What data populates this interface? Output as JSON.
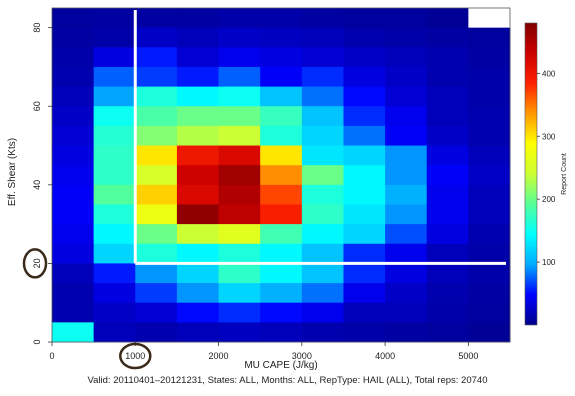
{
  "chart_data": {
    "type": "heatmap",
    "xlabel": "MU CAPE (J/kg)",
    "ylabel": "Eff. Shear (Kts)",
    "caption": "Valid: 20110401–20121231, States: ALL, Months: ALL, RepType: HAIL (ALL),   Total reps: 20740",
    "colorbar_label": "Report Count",
    "x_range": [
      0,
      5500
    ],
    "y_range": [
      0,
      85
    ],
    "x_bin_size": 500,
    "y_bin_size": 5,
    "x_ticks": [
      0,
      1000,
      2000,
      3000,
      4000,
      5000
    ],
    "y_ticks": [
      0,
      20,
      40,
      60,
      80
    ],
    "colorbar_range": [
      0,
      480
    ],
    "colorbar_ticks": [
      100,
      200,
      300,
      400
    ],
    "colormap": [
      "#00008b",
      "#0000ff",
      "#00aaff",
      "#00ffff",
      "#55ff99",
      "#ccff33",
      "#ffff00",
      "#ff9900",
      "#ff2200",
      "#cc0000",
      "#800000"
    ],
    "x_bins_start": [
      0,
      500,
      1000,
      1500,
      2000,
      2500,
      3000,
      3500,
      4000,
      4500,
      5000
    ],
    "y_bins_start": [
      80,
      75,
      70,
      65,
      60,
      55,
      50,
      45,
      40,
      35,
      30,
      25,
      20,
      15,
      10,
      5,
      0
    ],
    "values": [
      [
        8,
        10,
        10,
        10,
        12,
        12,
        10,
        8,
        8,
        5,
        null
      ],
      [
        10,
        12,
        25,
        20,
        25,
        22,
        20,
        15,
        12,
        10,
        8
      ],
      [
        12,
        35,
        55,
        30,
        40,
        35,
        30,
        25,
        20,
        15,
        10
      ],
      [
        15,
        75,
        65,
        55,
        75,
        45,
        60,
        35,
        25,
        15,
        12
      ],
      [
        20,
        95,
        160,
        140,
        150,
        110,
        80,
        50,
        30,
        20,
        12
      ],
      [
        25,
        150,
        185,
        200,
        200,
        175,
        110,
        60,
        40,
        20,
        15
      ],
      [
        30,
        165,
        210,
        230,
        240,
        160,
        120,
        80,
        45,
        25,
        15
      ],
      [
        35,
        170,
        300,
        400,
        420,
        300,
        130,
        120,
        90,
        35,
        20
      ],
      [
        40,
        170,
        250,
        430,
        460,
        340,
        200,
        140,
        90,
        45,
        25
      ],
      [
        45,
        190,
        310,
        420,
        450,
        370,
        160,
        140,
        100,
        40,
        20
      ],
      [
        45,
        160,
        270,
        470,
        440,
        390,
        170,
        130,
        90,
        40,
        20
      ],
      [
        40,
        140,
        200,
        240,
        260,
        180,
        140,
        120,
        70,
        35,
        15
      ],
      [
        35,
        120,
        160,
        140,
        160,
        140,
        110,
        60,
        40,
        20,
        12
      ],
      [
        20,
        55,
        90,
        120,
        170,
        140,
        110,
        60,
        35,
        20,
        12
      ],
      [
        15,
        35,
        65,
        90,
        120,
        100,
        80,
        40,
        25,
        15,
        10
      ],
      [
        15,
        25,
        30,
        50,
        60,
        50,
        40,
        20,
        20,
        12,
        8
      ],
      [
        150,
        20,
        15,
        20,
        22,
        20,
        15,
        12,
        10,
        8,
        5
      ]
    ],
    "annotations": {
      "threshold_x": 1000,
      "threshold_y": 20,
      "circled_ticks": [
        "1000",
        "20"
      ]
    }
  }
}
